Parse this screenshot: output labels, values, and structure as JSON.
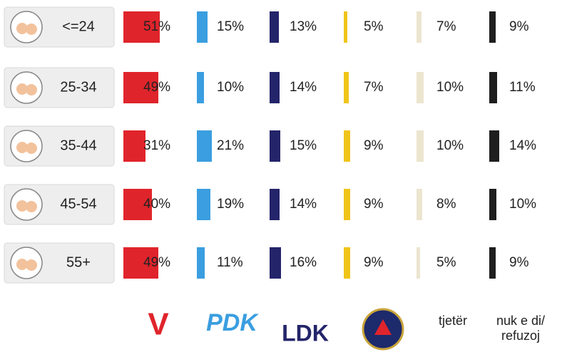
{
  "chart_data": {
    "type": "bar",
    "categories": [
      "<=24",
      "25-34",
      "35-44",
      "45-54",
      "55+"
    ],
    "series": [
      {
        "name": "V",
        "color": "#e0242b",
        "values": [
          51,
          49,
          31,
          40,
          49
        ],
        "value_labels": [
          "51%",
          "49%",
          "31%",
          "40%",
          "49%"
        ]
      },
      {
        "name": "PDK",
        "color": "#3a9ee0",
        "values": [
          15,
          10,
          21,
          19,
          11
        ],
        "value_labels": [
          "15%",
          "10%",
          "21%",
          "19%",
          "11%"
        ]
      },
      {
        "name": "LDK",
        "color": "#24246a",
        "values": [
          13,
          14,
          15,
          14,
          16
        ],
        "value_labels": [
          "13%",
          "14%",
          "15%",
          "14%",
          "16%"
        ]
      },
      {
        "color": "#f0c419",
        "values": [
          5,
          7,
          9,
          9,
          9
        ],
        "value_labels": [
          "5%",
          "7%",
          "9%",
          "9%",
          "9%"
        ]
      },
      {
        "name": "tjetër",
        "color": "#ece5cf",
        "values": [
          7,
          10,
          10,
          8,
          5
        ],
        "value_labels": [
          "7%",
          "10%",
          "10%",
          "8%",
          "5%"
        ]
      },
      {
        "name": "nuk e di/ refuzoj",
        "color": "#1e1e1e",
        "values": [
          9,
          11,
          14,
          10,
          9
        ],
        "value_labels": [
          "9%",
          "11%",
          "14%",
          "10%",
          "9%"
        ]
      }
    ]
  }
}
